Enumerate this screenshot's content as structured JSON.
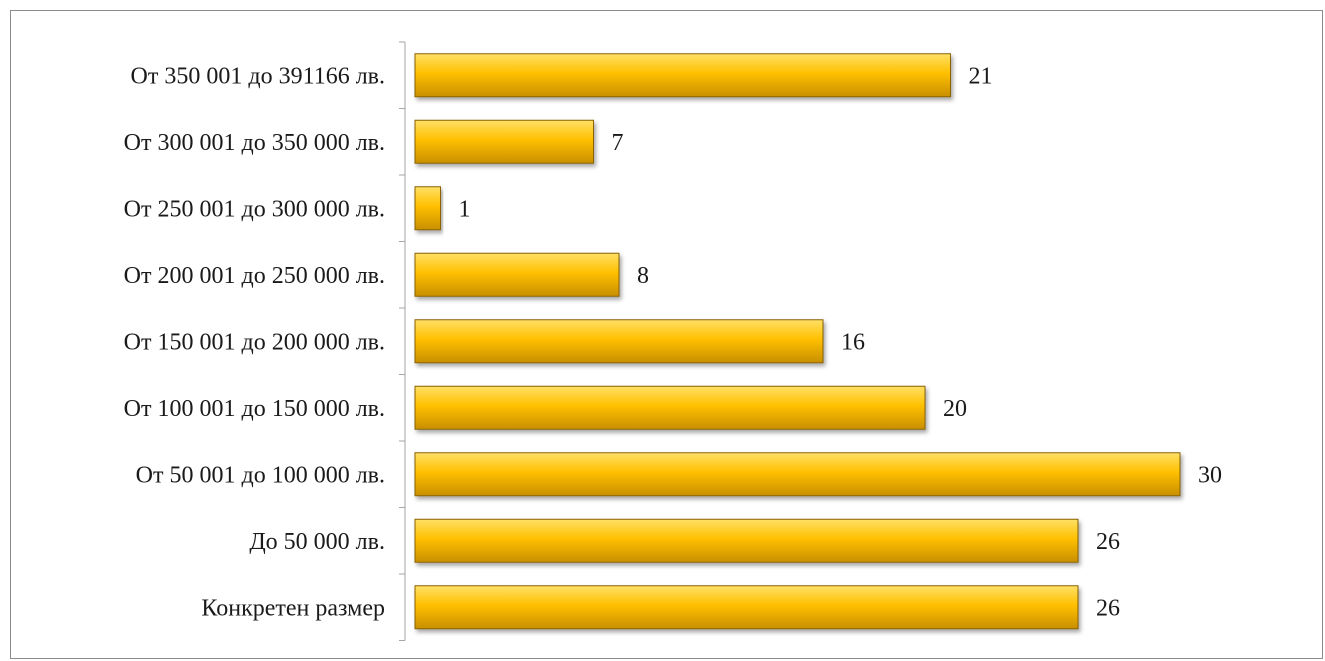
{
  "chart_data": {
    "type": "bar",
    "orientation": "horizontal",
    "categories": [
      "От 350 001 до 391166 лв.",
      "От 300 001 до 350 000 лв.",
      "От 250 001 до 300 000 лв.",
      "От 200 001 до 250 000 лв.",
      "От 150 001 до 200 000 лв.",
      "От 100 001 до 150 000 лв.",
      "От 50 001 до 100 000 лв.",
      "До 50 000 лв.",
      "Конкретен размер"
    ],
    "values": [
      21,
      7,
      1,
      8,
      16,
      20,
      30,
      26,
      26
    ],
    "data_labels": [
      "21",
      "7",
      "1",
      "8",
      "16",
      "20",
      "30",
      "26",
      "26"
    ],
    "xlim": [
      0,
      30
    ],
    "grid": false,
    "legend": "none",
    "colors": {
      "bar_top": "#ffe066",
      "bar_mid": "#ffc000",
      "bar_bottom": "#c98f00",
      "bar_edge": "#8a6200"
    }
  }
}
